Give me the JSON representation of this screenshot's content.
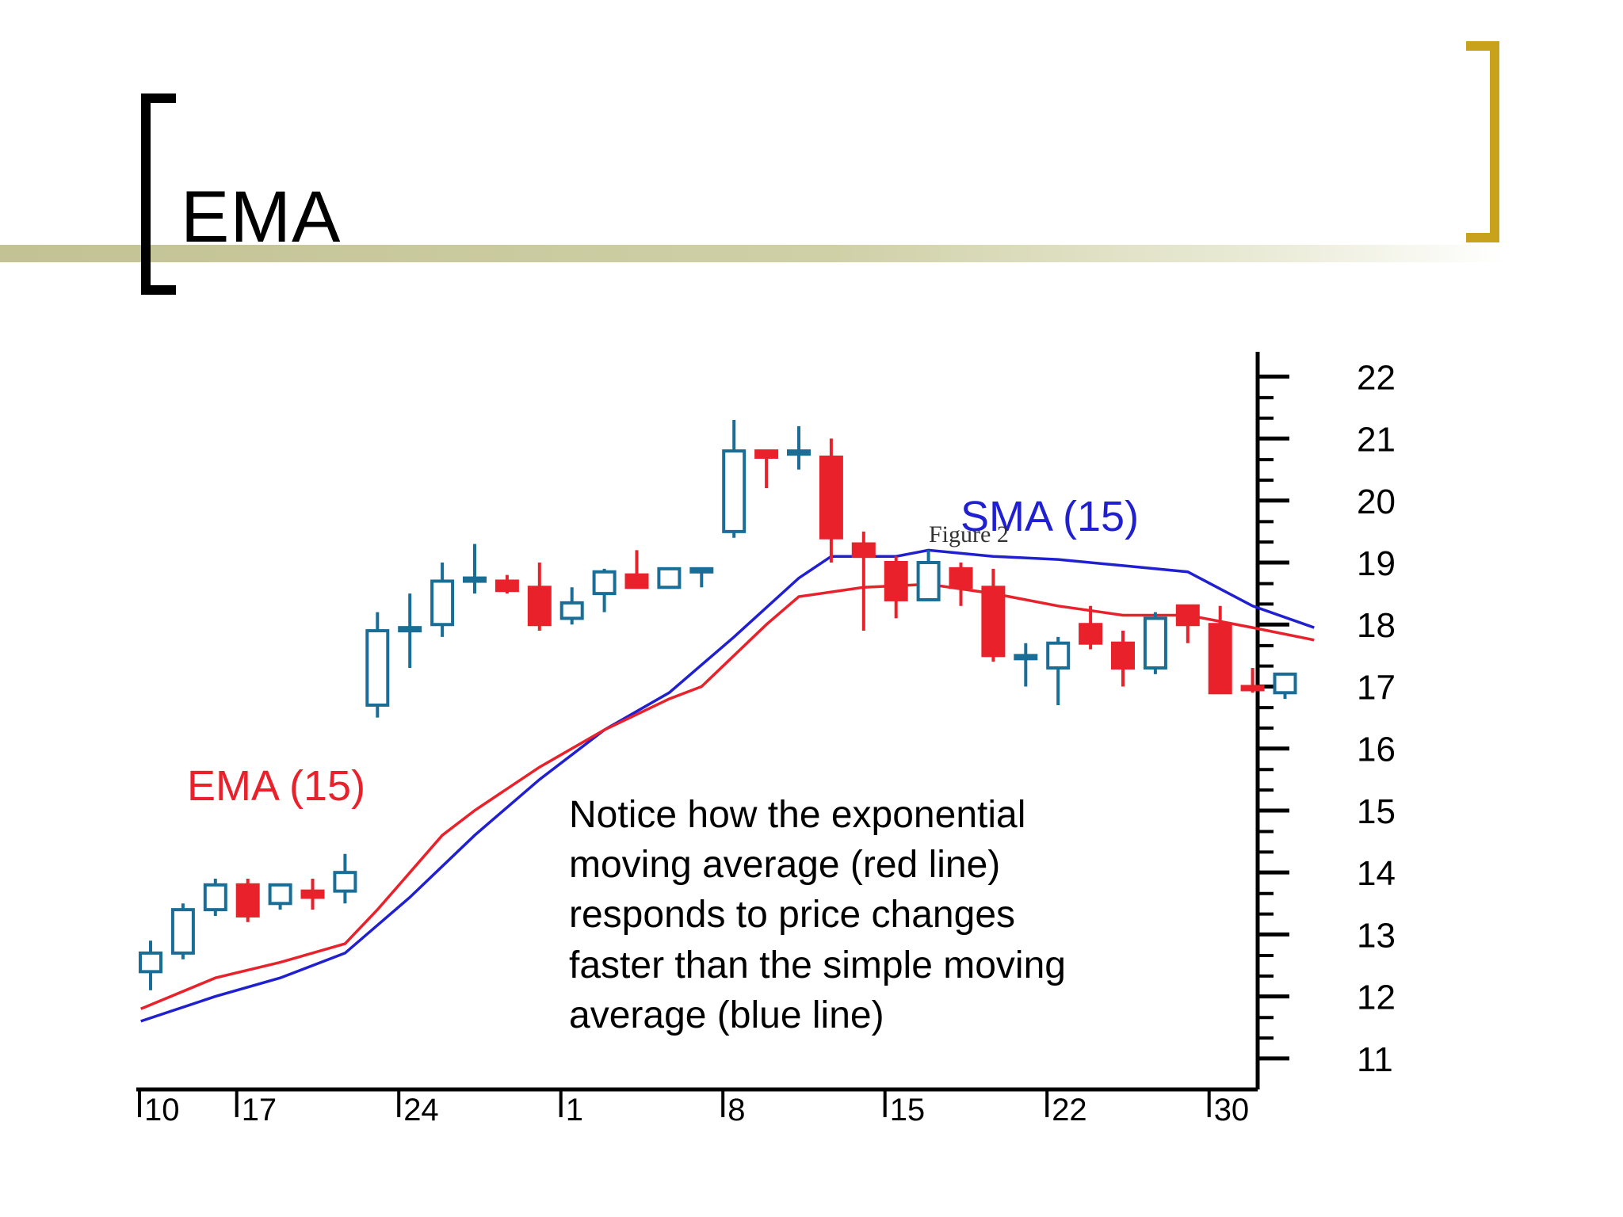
{
  "slide": {
    "title": "EMA",
    "colors": {
      "band": "#c8c89c",
      "left_bracket": "#000000",
      "right_bracket": "#c9a21c"
    }
  },
  "chart_data": {
    "type": "candlestick",
    "title": "",
    "figure_label": "Figure 2",
    "annotation": [
      "Notice how the exponential",
      "moving average (red line)",
      "responds to price changes",
      "faster than the simple moving",
      "average (blue line)"
    ],
    "series_labels": {
      "ema": "EMA (15)",
      "sma": "SMA (15)"
    },
    "colors": {
      "up": "#1a6e96",
      "down": "#e8212b",
      "ema": "#e8212b",
      "sma": "#2020d0",
      "text": "#000000"
    },
    "ylim": [
      10.5,
      22.4
    ],
    "y_ticks": [
      22,
      21,
      20,
      19,
      18,
      17,
      16,
      15,
      14,
      13,
      12,
      11
    ],
    "x_tick_labels": [
      {
        "index": 0,
        "label": "10"
      },
      {
        "index": 3,
        "label": "17"
      },
      {
        "index": 8,
        "label": "24"
      },
      {
        "index": 13,
        "label": "1"
      },
      {
        "index": 18,
        "label": "8"
      },
      {
        "index": 23,
        "label": "15"
      },
      {
        "index": 28,
        "label": "22"
      },
      {
        "index": 33,
        "label": "30"
      }
    ],
    "candles": [
      {
        "o": 12.4,
        "h": 12.9,
        "l": 12.1,
        "c": 12.7
      },
      {
        "o": 12.7,
        "h": 13.5,
        "l": 12.6,
        "c": 13.4
      },
      {
        "o": 13.4,
        "h": 13.9,
        "l": 13.3,
        "c": 13.8
      },
      {
        "o": 13.8,
        "h": 13.9,
        "l": 13.2,
        "c": 13.3
      },
      {
        "o": 13.5,
        "h": 13.8,
        "l": 13.4,
        "c": 13.8
      },
      {
        "o": 13.7,
        "h": 13.9,
        "l": 13.4,
        "c": 13.6
      },
      {
        "o": 13.7,
        "h": 14.3,
        "l": 13.5,
        "c": 14.0
      },
      {
        "o": 16.7,
        "h": 18.2,
        "l": 16.5,
        "c": 17.9
      },
      {
        "o": 17.9,
        "h": 18.5,
        "l": 17.3,
        "c": 17.95
      },
      {
        "o": 18.0,
        "h": 19.0,
        "l": 17.8,
        "c": 18.7
      },
      {
        "o": 18.7,
        "h": 19.3,
        "l": 18.5,
        "c": 18.75
      },
      {
        "o": 18.7,
        "h": 18.8,
        "l": 18.5,
        "c": 18.55
      },
      {
        "o": 18.6,
        "h": 19.0,
        "l": 17.9,
        "c": 18.0
      },
      {
        "o": 18.1,
        "h": 18.6,
        "l": 18.0,
        "c": 18.35
      },
      {
        "o": 18.5,
        "h": 18.9,
        "l": 18.2,
        "c": 18.85
      },
      {
        "o": 18.8,
        "h": 19.2,
        "l": 18.6,
        "c": 18.6
      },
      {
        "o": 18.6,
        "h": 18.9,
        "l": 18.6,
        "c": 18.9
      },
      {
        "o": 18.9,
        "h": 18.9,
        "l": 18.6,
        "c": 18.9
      },
      {
        "o": 19.5,
        "h": 21.3,
        "l": 19.4,
        "c": 20.8
      },
      {
        "o": 20.8,
        "h": 20.8,
        "l": 20.2,
        "c": 20.7
      },
      {
        "o": 20.8,
        "h": 21.2,
        "l": 20.5,
        "c": 20.8
      },
      {
        "o": 20.7,
        "h": 21.0,
        "l": 19.0,
        "c": 19.4
      },
      {
        "o": 19.3,
        "h": 19.5,
        "l": 17.9,
        "c": 19.1
      },
      {
        "o": 19.0,
        "h": 19.1,
        "l": 18.1,
        "c": 18.4
      },
      {
        "o": 18.4,
        "h": 19.2,
        "l": 18.4,
        "c": 19.0
      },
      {
        "o": 18.9,
        "h": 19.0,
        "l": 18.3,
        "c": 18.6
      },
      {
        "o": 18.6,
        "h": 18.9,
        "l": 17.4,
        "c": 17.5
      },
      {
        "o": 17.5,
        "h": 17.7,
        "l": 17.0,
        "c": 17.5
      },
      {
        "o": 17.3,
        "h": 17.8,
        "l": 16.7,
        "c": 17.7
      },
      {
        "o": 18.0,
        "h": 18.3,
        "l": 17.6,
        "c": 17.7
      },
      {
        "o": 17.7,
        "h": 17.9,
        "l": 17.0,
        "c": 17.3
      },
      {
        "o": 17.3,
        "h": 18.2,
        "l": 17.2,
        "c": 18.1
      },
      {
        "o": 18.3,
        "h": 18.3,
        "l": 17.7,
        "c": 18.0
      },
      {
        "o": 18.0,
        "h": 18.3,
        "l": 16.9,
        "c": 16.9
      },
      {
        "o": 17.0,
        "h": 17.3,
        "l": 16.9,
        "c": 16.95
      },
      {
        "o": 16.9,
        "h": 17.2,
        "l": 16.8,
        "c": 17.2
      }
    ],
    "ema": [
      {
        "x": -0.3,
        "y": 11.8
      },
      {
        "x": 2,
        "y": 12.3
      },
      {
        "x": 4,
        "y": 12.55
      },
      {
        "x": 6,
        "y": 12.85
      },
      {
        "x": 7,
        "y": 13.4
      },
      {
        "x": 8,
        "y": 14.0
      },
      {
        "x": 9,
        "y": 14.6
      },
      {
        "x": 10,
        "y": 15.0
      },
      {
        "x": 12,
        "y": 15.7
      },
      {
        "x": 14,
        "y": 16.3
      },
      {
        "x": 16,
        "y": 16.8
      },
      {
        "x": 17,
        "y": 17.0
      },
      {
        "x": 19,
        "y": 18.0
      },
      {
        "x": 20,
        "y": 18.45
      },
      {
        "x": 22,
        "y": 18.6
      },
      {
        "x": 24,
        "y": 18.65
      },
      {
        "x": 26,
        "y": 18.5
      },
      {
        "x": 28,
        "y": 18.3
      },
      {
        "x": 30,
        "y": 18.15
      },
      {
        "x": 32,
        "y": 18.15
      },
      {
        "x": 34,
        "y": 17.95
      },
      {
        "x": 35.9,
        "y": 17.75
      }
    ],
    "sma": [
      {
        "x": -0.3,
        "y": 11.6
      },
      {
        "x": 2,
        "y": 12.0
      },
      {
        "x": 4,
        "y": 12.3
      },
      {
        "x": 6,
        "y": 12.7
      },
      {
        "x": 8,
        "y": 13.6
      },
      {
        "x": 10,
        "y": 14.6
      },
      {
        "x": 12,
        "y": 15.5
      },
      {
        "x": 14,
        "y": 16.3
      },
      {
        "x": 16,
        "y": 16.9
      },
      {
        "x": 18,
        "y": 17.8
      },
      {
        "x": 20,
        "y": 18.75
      },
      {
        "x": 21,
        "y": 19.1
      },
      {
        "x": 23,
        "y": 19.1
      },
      {
        "x": 24,
        "y": 19.2
      },
      {
        "x": 26,
        "y": 19.1
      },
      {
        "x": 28,
        "y": 19.05
      },
      {
        "x": 30,
        "y": 18.95
      },
      {
        "x": 32,
        "y": 18.85
      },
      {
        "x": 34,
        "y": 18.3
      },
      {
        "x": 35.9,
        "y": 17.95
      }
    ]
  }
}
